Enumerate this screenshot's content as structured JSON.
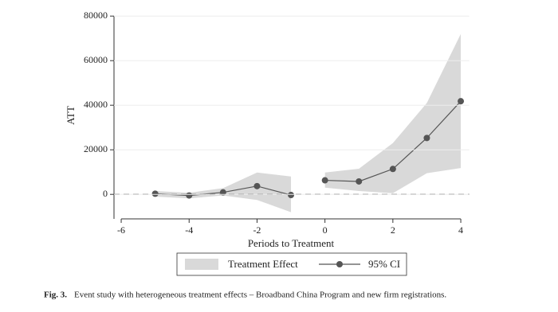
{
  "chart_data": {
    "type": "line-ci",
    "ylabel": "ATT",
    "xlabel": "Periods to Treatment",
    "x": [
      -5,
      -4,
      -3,
      -2,
      -1,
      null,
      0,
      1,
      2,
      3,
      4
    ],
    "series": [
      {
        "name": "Treatment Effect",
        "color": "#d9d9d9",
        "lower": [
          -1000,
          -1800,
          -500,
          -2500,
          -8000,
          null,
          3000,
          1500,
          500,
          9500,
          11800
        ],
        "upper": [
          1500,
          700,
          2800,
          9800,
          8000,
          null,
          9800,
          11500,
          23000,
          41000,
          72000
        ]
      },
      {
        "name": "95% CI",
        "color": "#555555",
        "values": [
          300,
          -500,
          900,
          3700,
          -300,
          null,
          6300,
          5800,
          11400,
          25300,
          41800
        ]
      }
    ],
    "xlim": [
      -6.25,
      4.25
    ],
    "xticks": [
      -6,
      -4,
      -2,
      0,
      2,
      4
    ],
    "ylim": [
      -11000,
      82000
    ],
    "yticks": [
      0,
      20000,
      40000,
      60000,
      80000
    ],
    "reference_line": 0,
    "caption": {
      "label": "Fig. 3.",
      "text": "Event study with heterogeneous treatment effects – Broadband China Program and new firm registrations."
    }
  }
}
